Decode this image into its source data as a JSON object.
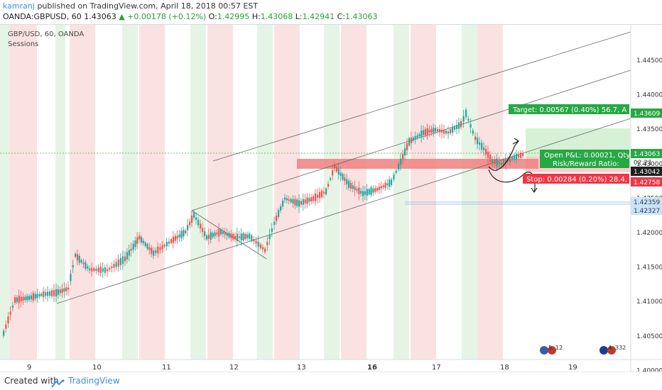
{
  "header": {
    "author": "kamranj",
    "published_text": "published on TradingView.com, April 18, 2018 00:57 EST",
    "symbol": "OANDA:GBPUSD, 60",
    "last": "1.43063",
    "change": "▲ +0.00178 (+0.12%)",
    "o_label": "O:",
    "o_value": "1.42995",
    "h_label": "H:",
    "h_value": "1.43068",
    "l_label": "L:",
    "l_value": "1.42941",
    "c_label": "C:",
    "c_value": "1.43063"
  },
  "legend": {
    "symbol_line": "GBP/USD, 60, OANDA",
    "indicator": "Sessions"
  },
  "price_axis": {
    "ticks": [
      "1.44500",
      "1.44000",
      "1.43500",
      "1.43000",
      "1.42500",
      "1.42000",
      "1.41500",
      "1.41000",
      "1.40500",
      "1.40000"
    ],
    "labels": {
      "target_price": "1.43609",
      "current_price": "1.43063",
      "countdown": "02:21",
      "entry_price": "1.43042",
      "stop_price": "1.42758",
      "level_a": "1.42359",
      "level_b": "1.42327"
    }
  },
  "time_axis": {
    "ticks": [
      "9",
      "10",
      "11",
      "12",
      "13",
      "16",
      "17",
      "18",
      "19"
    ]
  },
  "position_tool": {
    "target_text": "Target: 0.00567 (0.40%) 56.7, A",
    "pnl_text": "Open P&L: 0.00021, Qty",
    "rr_text": "Risk/Reward Ratio:",
    "stop_text": "Stop: 0.00284 (0.20%) 28.4,"
  },
  "events": {
    "event1_count": "5",
    "event1_count2": "12",
    "event2_count": "4",
    "event2_count2": "332"
  },
  "footer": {
    "created_with": "Created with",
    "brand": "TradingView"
  },
  "colors": {
    "up_candle": "#26a69a",
    "down_candle": "#ef5350",
    "green_session": "#e6f4e6",
    "red_session": "#fbe2e2",
    "target_green": "#26a843",
    "stop_red": "#f23645",
    "zone_red": "#f08080"
  }
}
